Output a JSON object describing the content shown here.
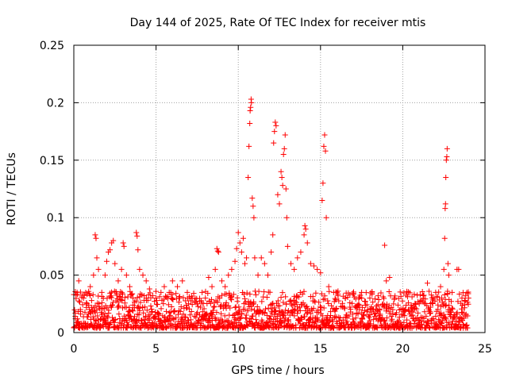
{
  "chart_data": {
    "type": "scatter",
    "title": "Day 144 of 2025, Rate Of TEC Index for receiver mtis",
    "xlabel": "GPS time / hours",
    "ylabel": "ROTI / TECUs",
    "xlim": [
      0,
      25
    ],
    "ylim": [
      0,
      0.25
    ],
    "x_ticks": [
      0,
      5,
      10,
      15,
      20,
      25
    ],
    "x_tick_labels": [
      "0",
      "5",
      "10",
      "15",
      "20",
      "25"
    ],
    "y_ticks": [
      0,
      0.05,
      0.1,
      0.15,
      0.2,
      0.25
    ],
    "y_tick_labels": [
      "0",
      "0.05",
      "0.1",
      "0.15",
      "0.2",
      "0.25"
    ],
    "grid": true,
    "marker": "+",
    "marker_color": "#ff0000",
    "series": [
      {
        "name": "ROTI",
        "points": [
          [
            0.1,
            0.012
          ],
          [
            0.2,
            0.035
          ],
          [
            0.3,
            0.045
          ],
          [
            0.4,
            0.02
          ],
          [
            0.6,
            0.03
          ],
          [
            0.8,
            0.025
          ],
          [
            1.0,
            0.04
          ],
          [
            1.2,
            0.05
          ],
          [
            1.3,
            0.085
          ],
          [
            1.35,
            0.082
          ],
          [
            1.4,
            0.065
          ],
          [
            1.5,
            0.055
          ],
          [
            1.7,
            0.035
          ],
          [
            1.9,
            0.05
          ],
          [
            2.0,
            0.062
          ],
          [
            2.1,
            0.07
          ],
          [
            2.2,
            0.072
          ],
          [
            2.3,
            0.078
          ],
          [
            2.4,
            0.08
          ],
          [
            2.5,
            0.06
          ],
          [
            2.7,
            0.045
          ],
          [
            2.9,
            0.055
          ],
          [
            3.0,
            0.078
          ],
          [
            3.05,
            0.075
          ],
          [
            3.2,
            0.05
          ],
          [
            3.4,
            0.04
          ],
          [
            3.6,
            0.03
          ],
          [
            3.8,
            0.087
          ],
          [
            3.85,
            0.084
          ],
          [
            3.9,
            0.072
          ],
          [
            4.0,
            0.055
          ],
          [
            4.2,
            0.05
          ],
          [
            4.4,
            0.045
          ],
          [
            4.6,
            0.038
          ],
          [
            4.8,
            0.032
          ],
          [
            5.0,
            0.03
          ],
          [
            5.3,
            0.035
          ],
          [
            5.5,
            0.04
          ],
          [
            5.8,
            0.035
          ],
          [
            6.0,
            0.045
          ],
          [
            6.3,
            0.04
          ],
          [
            6.6,
            0.045
          ],
          [
            6.9,
            0.035
          ],
          [
            7.2,
            0.03
          ],
          [
            7.5,
            0.025
          ],
          [
            7.8,
            0.035
          ],
          [
            8.0,
            0.03
          ],
          [
            8.2,
            0.048
          ],
          [
            8.4,
            0.04
          ],
          [
            8.6,
            0.055
          ],
          [
            8.7,
            0.073
          ],
          [
            8.75,
            0.071
          ],
          [
            8.8,
            0.07
          ],
          [
            9.0,
            0.045
          ],
          [
            9.2,
            0.04
          ],
          [
            9.4,
            0.05
          ],
          [
            9.6,
            0.055
          ],
          [
            9.8,
            0.062
          ],
          [
            9.9,
            0.073
          ],
          [
            10.0,
            0.087
          ],
          [
            10.1,
            0.078
          ],
          [
            10.2,
            0.07
          ],
          [
            10.3,
            0.082
          ],
          [
            10.4,
            0.06
          ],
          [
            10.5,
            0.065
          ],
          [
            10.6,
            0.135
          ],
          [
            10.65,
            0.162
          ],
          [
            10.7,
            0.182
          ],
          [
            10.72,
            0.193
          ],
          [
            10.75,
            0.196
          ],
          [
            10.78,
            0.203
          ],
          [
            10.8,
            0.2
          ],
          [
            10.85,
            0.117
          ],
          [
            10.9,
            0.11
          ],
          [
            10.95,
            0.1
          ],
          [
            11.0,
            0.065
          ],
          [
            11.2,
            0.05
          ],
          [
            11.4,
            0.065
          ],
          [
            11.6,
            0.06
          ],
          [
            11.8,
            0.05
          ],
          [
            12.0,
            0.07
          ],
          [
            12.1,
            0.085
          ],
          [
            12.15,
            0.165
          ],
          [
            12.2,
            0.175
          ],
          [
            12.25,
            0.183
          ],
          [
            12.3,
            0.18
          ],
          [
            12.4,
            0.12
          ],
          [
            12.5,
            0.112
          ],
          [
            12.6,
            0.14
          ],
          [
            12.65,
            0.135
          ],
          [
            12.7,
            0.128
          ],
          [
            12.75,
            0.155
          ],
          [
            12.8,
            0.16
          ],
          [
            12.85,
            0.172
          ],
          [
            12.9,
            0.125
          ],
          [
            12.95,
            0.1
          ],
          [
            13.0,
            0.075
          ],
          [
            13.2,
            0.06
          ],
          [
            13.4,
            0.055
          ],
          [
            13.6,
            0.065
          ],
          [
            13.8,
            0.07
          ],
          [
            14.0,
            0.085
          ],
          [
            14.05,
            0.093
          ],
          [
            14.1,
            0.09
          ],
          [
            14.2,
            0.078
          ],
          [
            14.4,
            0.06
          ],
          [
            14.6,
            0.058
          ],
          [
            14.8,
            0.055
          ],
          [
            15.0,
            0.052
          ],
          [
            15.1,
            0.115
          ],
          [
            15.15,
            0.13
          ],
          [
            15.2,
            0.162
          ],
          [
            15.25,
            0.172
          ],
          [
            15.3,
            0.158
          ],
          [
            15.35,
            0.1
          ],
          [
            15.5,
            0.04
          ],
          [
            15.8,
            0.035
          ],
          [
            16.0,
            0.035
          ],
          [
            16.5,
            0.03
          ],
          [
            17.0,
            0.033
          ],
          [
            17.5,
            0.035
          ],
          [
            18.0,
            0.03
          ],
          [
            18.5,
            0.032
          ],
          [
            18.9,
            0.076
          ],
          [
            19.0,
            0.045
          ],
          [
            19.2,
            0.048
          ],
          [
            19.5,
            0.03
          ],
          [
            20.0,
            0.02
          ],
          [
            20.5,
            0.022
          ],
          [
            21.0,
            0.025
          ],
          [
            21.5,
            0.043
          ],
          [
            22.0,
            0.035
          ],
          [
            22.3,
            0.04
          ],
          [
            22.5,
            0.055
          ],
          [
            22.55,
            0.082
          ],
          [
            22.58,
            0.108
          ],
          [
            22.6,
            0.112
          ],
          [
            22.62,
            0.135
          ],
          [
            22.65,
            0.15
          ],
          [
            22.68,
            0.153
          ],
          [
            22.7,
            0.16
          ],
          [
            22.75,
            0.06
          ],
          [
            22.8,
            0.05
          ],
          [
            23.0,
            0.035
          ],
          [
            23.3,
            0.055
          ],
          [
            23.4,
            0.055
          ],
          [
            23.6,
            0.03
          ],
          [
            23.8,
            0.028
          ],
          [
            24.0,
            0.03
          ]
        ]
      }
    ]
  }
}
